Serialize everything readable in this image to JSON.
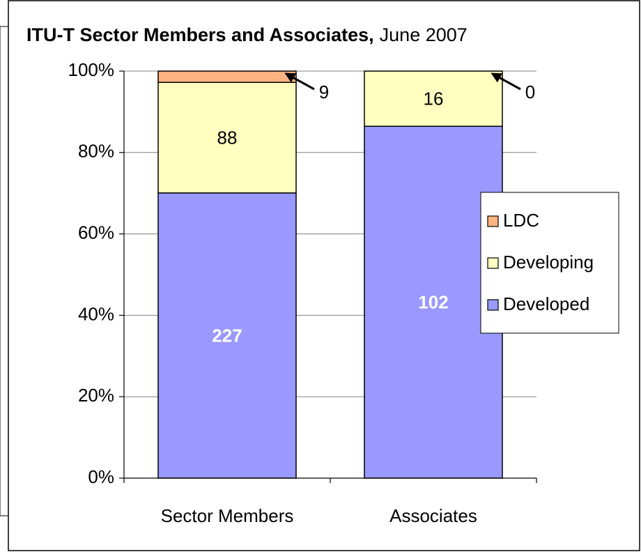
{
  "chart_data": {
    "type": "bar",
    "stacking": "percent",
    "title": "ITU-T Sector Members and Associates,",
    "subtitle": "June 2007",
    "categories": [
      "Sector Members",
      "Associates"
    ],
    "series": [
      {
        "name": "Developed",
        "color": "#9999ff",
        "values": [
          227,
          102
        ]
      },
      {
        "name": "Developing",
        "color": "#ffffc0",
        "values": [
          88,
          16
        ]
      },
      {
        "name": "LDC",
        "color": "#ffb380",
        "values": [
          9,
          0
        ]
      }
    ],
    "ylim": [
      0,
      100
    ],
    "yticks": [
      {
        "value": 0,
        "label": "0%"
      },
      {
        "value": 20,
        "label": "20%"
      },
      {
        "value": 40,
        "label": "40%"
      },
      {
        "value": 60,
        "label": "60%"
      },
      {
        "value": 80,
        "label": "80%"
      },
      {
        "value": 100,
        "label": "100%"
      }
    ],
    "grid": true,
    "legend": "right"
  }
}
